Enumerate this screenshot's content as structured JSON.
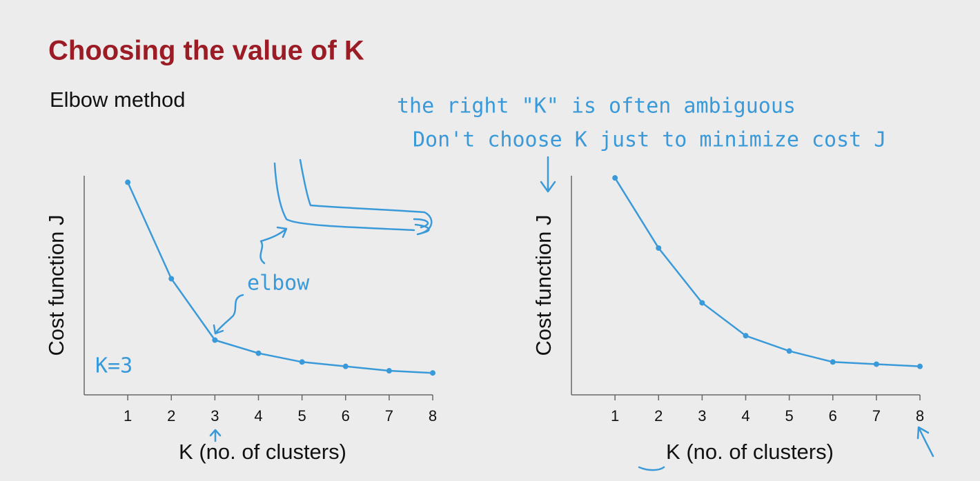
{
  "title": "Choosing the value of K",
  "subtitle": "Elbow method",
  "annotations": [
    "the right \"K\" is often ambiguous",
    "Don't choose K just to minimize cost J",
    "elbow",
    "K=3"
  ],
  "chart_data": [
    {
      "type": "line",
      "x": [
        1,
        2,
        3,
        4,
        5,
        6,
        7,
        8
      ],
      "values": [
        97,
        53,
        25,
        19,
        15,
        13,
        11,
        10
      ],
      "color": "#3a9ad9",
      "xlim": [
        0,
        8
      ],
      "ylim": [
        0,
        100
      ],
      "xticks": [
        1,
        2,
        3,
        4,
        5,
        6,
        7,
        8
      ],
      "xlabel": "K (no. of clusters)",
      "ylabel": "Cost function J"
    },
    {
      "type": "line",
      "x": [
        1,
        2,
        3,
        4,
        5,
        6,
        7,
        8
      ],
      "values": [
        99,
        67,
        42,
        27,
        20,
        15,
        14,
        13
      ],
      "color": "#3a9ad9",
      "xlim": [
        0,
        8
      ],
      "ylim": [
        0,
        100
      ],
      "xticks": [
        1,
        2,
        3,
        4,
        5,
        6,
        7,
        8
      ],
      "xlabel": "K (no. of clusters)",
      "ylabel": "Cost function J"
    }
  ]
}
